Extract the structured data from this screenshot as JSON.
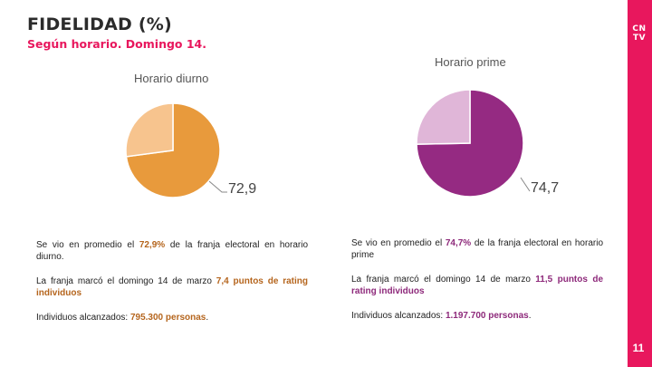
{
  "header": {
    "title": "FIDELIDAD (%)",
    "subtitle": "Según horario. Domingo 14."
  },
  "brand": {
    "logo_line1": "CN",
    "logo_line2": "TV",
    "page_number": "11",
    "accent": "#e8175d"
  },
  "chart_data": [
    {
      "type": "pie",
      "title": "Horario diurno",
      "value_label": "72,9",
      "values": [
        72.9,
        27.1
      ],
      "colors": [
        "#e89a3c",
        "#f7c48e"
      ]
    },
    {
      "type": "pie",
      "title": "Horario prime",
      "value_label": "74,7",
      "values": [
        74.7,
        25.3
      ],
      "colors": [
        "#952a82",
        "#e0b6d8"
      ]
    }
  ],
  "left_text": {
    "p1_pre": "Se vio en promedio el ",
    "p1_hl": "72,9%",
    "p1_post": " de la franja electoral en horario diurno.",
    "p2_pre": "La franja marcó el domingo 14 de marzo ",
    "p2_hl": "7,4",
    "p2_post": " puntos de rating individuos",
    "p3_pre": "Individuos alcanzados: ",
    "p3_hl": "795.300 personas",
    "p3_post": "."
  },
  "right_text": {
    "p1_pre": "Se vio en promedio el ",
    "p1_hl": "74,7%",
    "p1_post": " de la franja electoral en horario prime",
    "p2_pre": "La franja marcó el domingo 14 de marzo ",
    "p2_hl": "11,5 puntos de rating individuos",
    "p2_post": "",
    "p3_pre": "Individuos alcanzados: ",
    "p3_hl": "1.197.700 personas",
    "p3_post": "."
  }
}
